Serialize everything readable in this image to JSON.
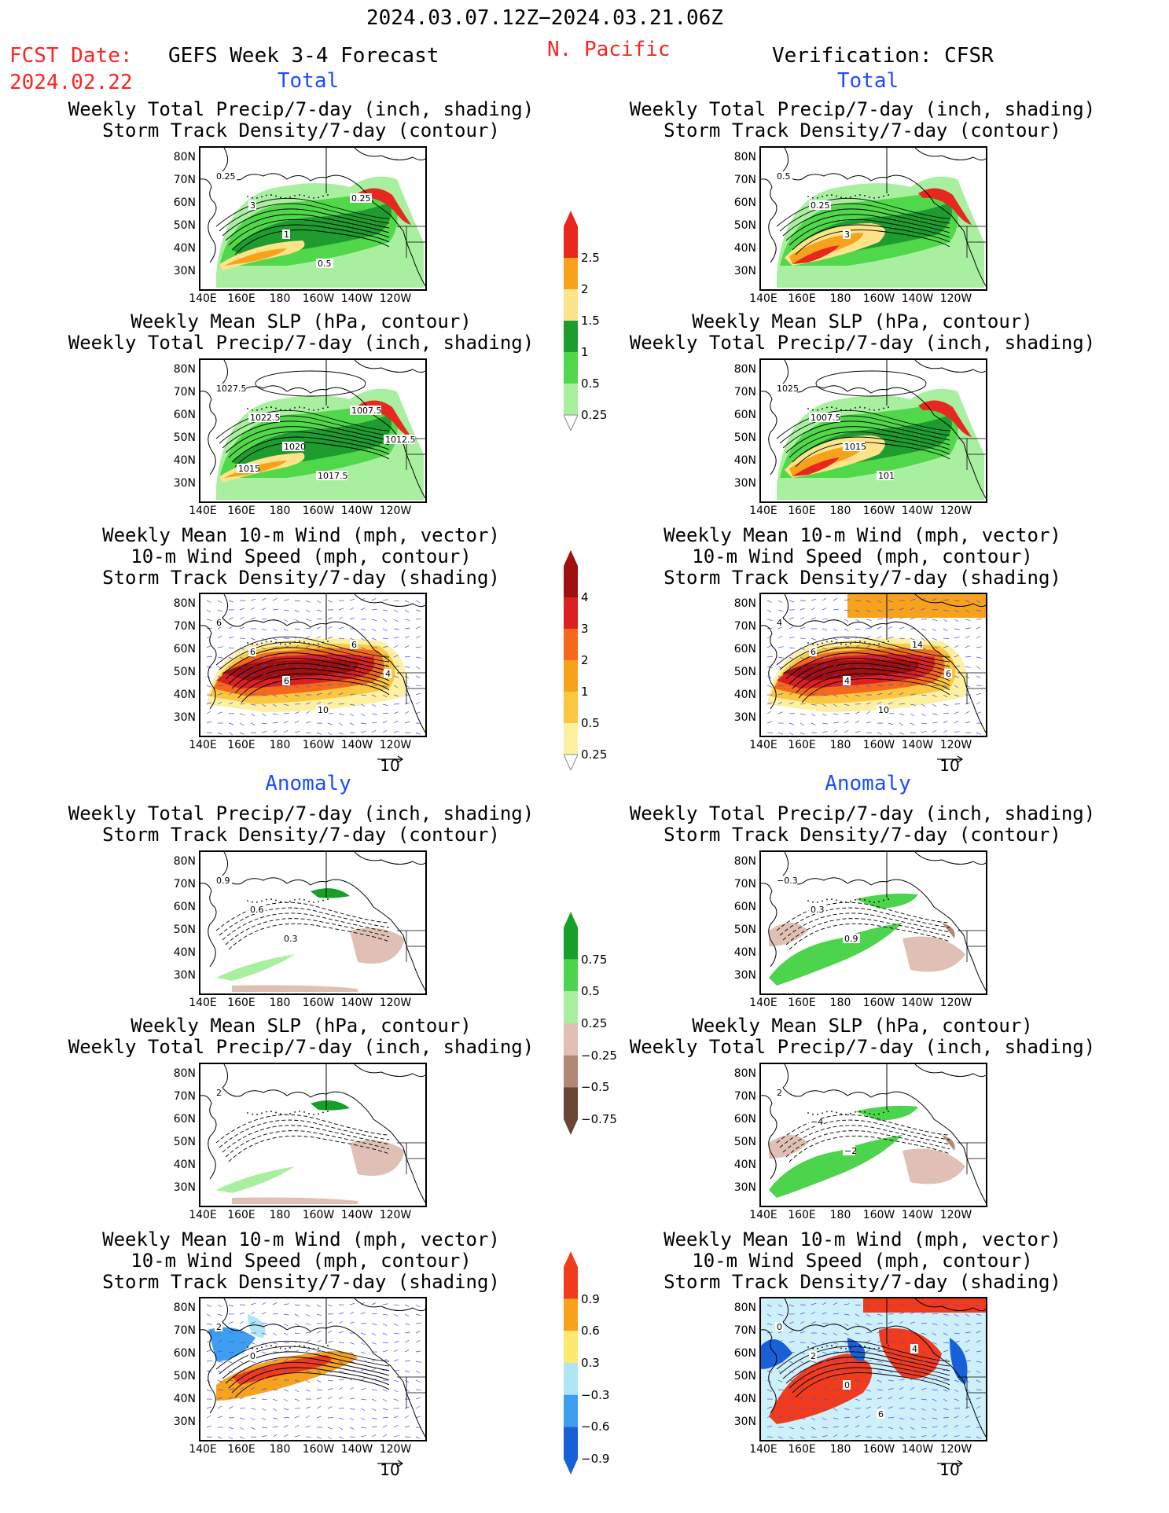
{
  "header": {
    "period": "2024.03.07.12Z−2024.03.21.06Z",
    "fcst_label": "FCST Date:",
    "fcst_date": "2024.02.22",
    "product": "GEFS Week 3-4 Forecast",
    "region": "N. Pacific",
    "verification": "Verification: CFSR"
  },
  "sections": {
    "total": "Total",
    "anomaly": "Anomaly"
  },
  "titles": {
    "precip_storm": "Weekly Total Precip/7-day (inch, shading)\nStorm Track Density/7-day (contour)",
    "slp_precip": "Weekly Mean SLP (hPa, contour)\nWeekly Total Precip/7-day (inch, shading)",
    "wind_storm": "Weekly Mean 10-m Wind (mph, vector)\n10-m Wind Speed (mph, contour)\nStorm Track Density/7-day (shading)"
  },
  "axes": {
    "lat_ticks": [
      "80N",
      "70N",
      "60N",
      "50N",
      "40N",
      "30N"
    ],
    "lon_ticks": [
      "140E",
      "160E",
      "180",
      "160W",
      "140W",
      "120W"
    ]
  },
  "vector_ref": "10",
  "colorbars": {
    "precip_total": {
      "labels": [
        "2.5",
        "2",
        "1.5",
        "1",
        "0.5",
        "0.25"
      ],
      "colors": [
        "#e8281e",
        "#f7a21b",
        "#fde38a",
        "#1e9c30",
        "#50d84a",
        "#a8f0a0"
      ]
    },
    "storm_total": {
      "labels": [
        "4",
        "3",
        "2",
        "1",
        "0.5",
        "0.25"
      ],
      "colors": [
        "#a01010",
        "#dc2020",
        "#f56a1a",
        "#f7a21b",
        "#fbc640",
        "#fdf0a0"
      ]
    },
    "precip_anom": {
      "labels": [
        "0.75",
        "0.5",
        "0.25",
        "−0.25",
        "−0.5",
        "−0.75"
      ],
      "colors": [
        "#16a02a",
        "#4cd44c",
        "#a8f0a0",
        "#e0c0b4",
        "#b08878",
        "#6a4434"
      ]
    },
    "storm_anom": {
      "labels": [
        "0.9",
        "0.6",
        "0.3",
        "−0.3",
        "−0.6",
        "−0.9"
      ],
      "colors": [
        "#f03c1c",
        "#f7a21b",
        "#fde870",
        "#aee6f6",
        "#3e9ef0",
        "#1860d8"
      ]
    }
  },
  "contour_labels": {
    "fc_total_precip": [
      "0.25",
      "3",
      "1",
      "0.5",
      "0.25"
    ],
    "fc_total_slp": [
      "1027.5",
      "1022.5",
      "1020",
      "1017.5",
      "1007.5",
      "1012.5",
      "1015"
    ],
    "fc_total_wind": [
      "6",
      "6",
      "6",
      "10",
      "6",
      "4"
    ],
    "vf_total_precip": [
      "0.5",
      "0.25",
      "3"
    ],
    "vf_total_slp": [
      "1025",
      "1007.5",
      "1015",
      "101"
    ],
    "vf_total_wind": [
      "4",
      "6",
      "4",
      "10",
      "14",
      "6"
    ],
    "fc_anom_precip": [
      "0.9",
      "0.6",
      "0.3"
    ],
    "fc_anom_slp": [
      "2"
    ],
    "fc_anom_wind": [
      "2",
      "0"
    ],
    "vf_anom_precip": [
      "−0.3",
      "0.3",
      "0.9"
    ],
    "vf_anom_slp": [
      "2",
      "−4",
      "−2"
    ],
    "vf_anom_wind": [
      "0",
      "2",
      "0",
      "6",
      "4"
    ]
  }
}
